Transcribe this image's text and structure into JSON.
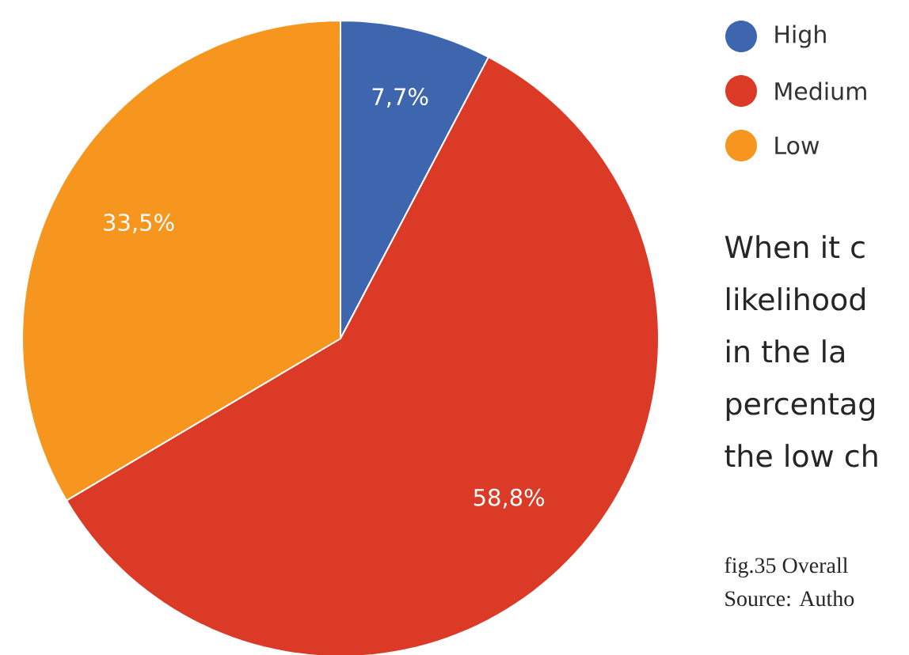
{
  "chart_data": {
    "type": "pie",
    "categories": [
      "High",
      "Medium",
      "Low"
    ],
    "values": [
      7.7,
      58.8,
      33.5
    ],
    "colors": [
      "#3d66ae",
      "#db3b26",
      "#f6961e"
    ],
    "value_labels": [
      "7,7%",
      "58,8%",
      "33,5%"
    ],
    "legend": "top right",
    "annotations": [
      "When it c",
      "likelihood",
      "in the la",
      "percentag",
      "the low ch",
      "fig.35 Overall",
      "Source: Autho"
    ]
  }
}
